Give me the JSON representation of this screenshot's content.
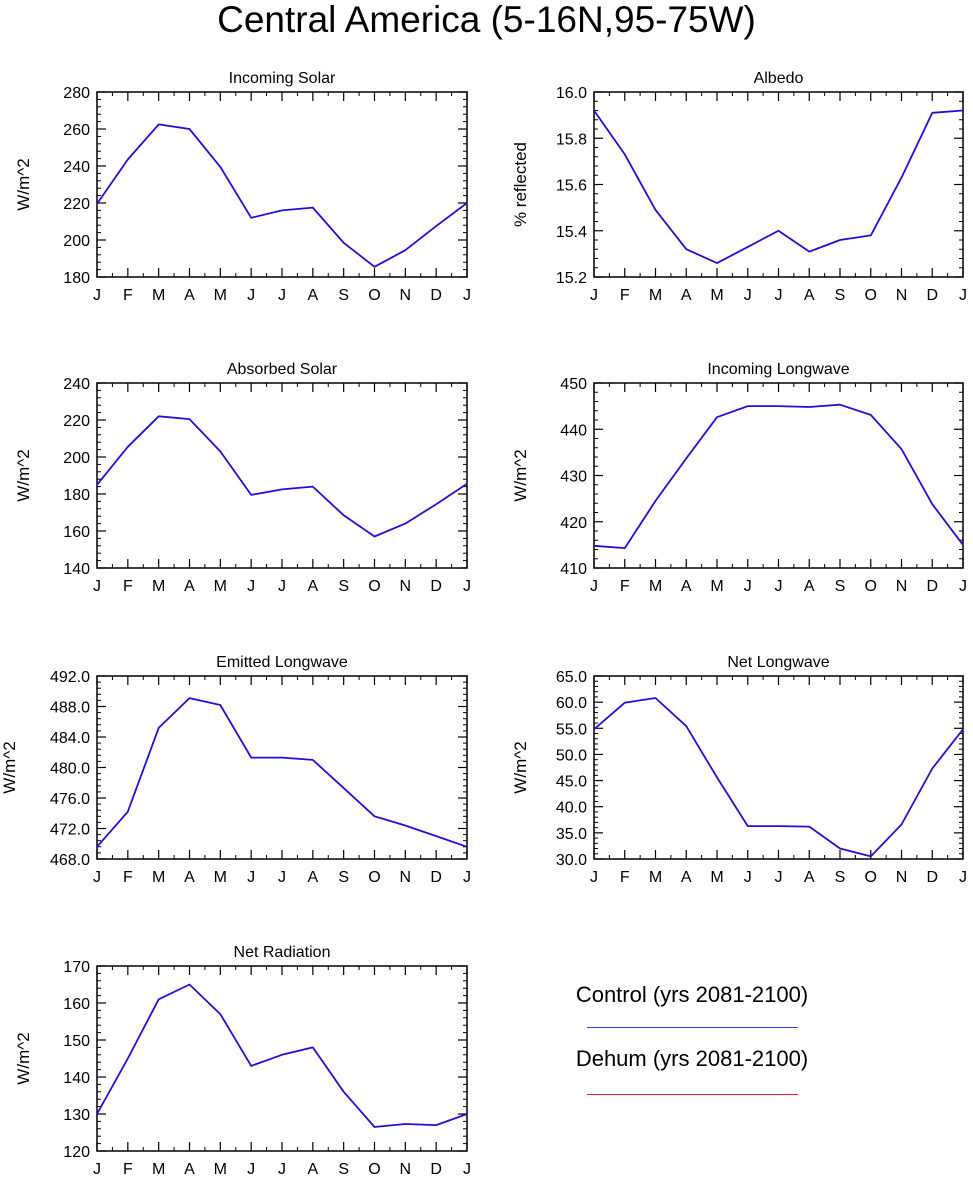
{
  "title": "Central America (5-16N,95-75W)",
  "legend": [
    {
      "label": "Control (yrs 2081-2100)",
      "color": "#3a3aff"
    },
    {
      "label": "Dehum (yrs 2081-2100)",
      "color": "#ff2020"
    }
  ],
  "chart_data": [
    {
      "type": "line",
      "title": "Incoming Solar",
      "ylabel": "W/m^2",
      "categories": [
        "J",
        "F",
        "M",
        "A",
        "M",
        "J",
        "J",
        "A",
        "S",
        "O",
        "N",
        "D",
        "J"
      ],
      "ylim": [
        180,
        280
      ],
      "yticks": [
        "180",
        "200",
        "220",
        "240",
        "260",
        "280"
      ],
      "series": [
        {
          "name": "Control (yrs 2081-2100)",
          "color": "#1f10d8",
          "values": [
            219.5,
            243.5,
            262.5,
            260,
            239.5,
            212,
            216,
            217.5,
            198.5,
            185.5,
            194.5,
            207.5,
            220
          ]
        }
      ]
    },
    {
      "type": "line",
      "title": "Albedo",
      "ylabel": "% reflected",
      "categories": [
        "J",
        "F",
        "M",
        "A",
        "M",
        "J",
        "J",
        "A",
        "S",
        "O",
        "N",
        "D",
        "J"
      ],
      "ylim": [
        15.2,
        16.0
      ],
      "yticks": [
        "15.2",
        "15.4",
        "15.6",
        "15.8",
        "16.0"
      ],
      "series": [
        {
          "name": "Control (yrs 2081-2100)",
          "color": "#1f10d8",
          "values": [
            15.92,
            15.73,
            15.49,
            15.32,
            15.26,
            15.33,
            15.4,
            15.31,
            15.36,
            15.38,
            15.63,
            15.91,
            15.92
          ]
        }
      ]
    },
    {
      "type": "line",
      "title": "Absorbed Solar",
      "ylabel": "W/m^2",
      "categories": [
        "J",
        "F",
        "M",
        "A",
        "M",
        "J",
        "J",
        "A",
        "S",
        "O",
        "N",
        "D",
        "J"
      ],
      "ylim": [
        140,
        240
      ],
      "yticks": [
        "140",
        "160",
        "180",
        "200",
        "220",
        "240"
      ],
      "series": [
        {
          "name": "Control (yrs 2081-2100)",
          "color": "#1f10d8",
          "values": [
            185,
            205.5,
            222,
            220.5,
            203,
            179.5,
            182.5,
            184,
            168.5,
            157,
            164,
            174.5,
            185.5
          ]
        }
      ]
    },
    {
      "type": "line",
      "title": "Incoming Longwave",
      "ylabel": "W/m^2",
      "categories": [
        "J",
        "F",
        "M",
        "A",
        "M",
        "J",
        "J",
        "A",
        "S",
        "O",
        "N",
        "D",
        "J"
      ],
      "ylim": [
        410,
        450
      ],
      "yticks": [
        "410",
        "420",
        "430",
        "440",
        "450"
      ],
      "series": [
        {
          "name": "Control (yrs 2081-2100)",
          "color": "#1f10d8",
          "values": [
            414.8,
            414.3,
            424.5,
            433.7,
            442.6,
            445.0,
            445.0,
            444.8,
            445.3,
            443.1,
            435.7,
            423.8,
            415.0
          ]
        }
      ]
    },
    {
      "type": "line",
      "title": "Emitted Longwave",
      "ylabel": "W/m^2",
      "categories": [
        "J",
        "F",
        "M",
        "A",
        "M",
        "J",
        "J",
        "A",
        "S",
        "O",
        "N",
        "D",
        "J"
      ],
      "ylim": [
        468,
        492
      ],
      "yticks": [
        "468.0",
        "472.0",
        "476.0",
        "480.0",
        "484.0",
        "488.0",
        "492.0"
      ],
      "series": [
        {
          "name": "Control (yrs 2081-2100)",
          "color": "#1f10d8",
          "values": [
            469.6,
            474.2,
            485.2,
            489.1,
            488.2,
            481.3,
            481.3,
            481.0,
            477.3,
            473.6,
            472.4,
            471.0,
            469.6
          ]
        }
      ]
    },
    {
      "type": "line",
      "title": "Net Longwave",
      "ylabel": "W/m^2",
      "categories": [
        "J",
        "F",
        "M",
        "A",
        "M",
        "J",
        "J",
        "A",
        "S",
        "O",
        "N",
        "D",
        "J"
      ],
      "ylim": [
        30,
        65
      ],
      "yticks": [
        "30.0",
        "35.0",
        "40.0",
        "45.0",
        "50.0",
        "55.0",
        "60.0",
        "65.0"
      ],
      "series": [
        {
          "name": "Control (yrs 2081-2100)",
          "color": "#1f10d8",
          "values": [
            54.8,
            59.9,
            60.8,
            55.4,
            45.6,
            36.3,
            36.3,
            36.2,
            32.0,
            30.5,
            36.6,
            47.3,
            54.8
          ]
        }
      ]
    },
    {
      "type": "line",
      "title": "Net Radiation",
      "ylabel": "W/m^2",
      "categories": [
        "J",
        "F",
        "M",
        "A",
        "M",
        "J",
        "J",
        "A",
        "S",
        "O",
        "N",
        "D",
        "J"
      ],
      "ylim": [
        120,
        170
      ],
      "yticks": [
        "120",
        "130",
        "140",
        "150",
        "160",
        "170"
      ],
      "series": [
        {
          "name": "Control (yrs 2081-2100)",
          "color": "#1f10d8",
          "values": [
            130,
            145,
            161,
            165,
            157,
            143,
            146,
            148,
            136,
            126.5,
            127.3,
            127,
            130
          ]
        }
      ]
    }
  ]
}
